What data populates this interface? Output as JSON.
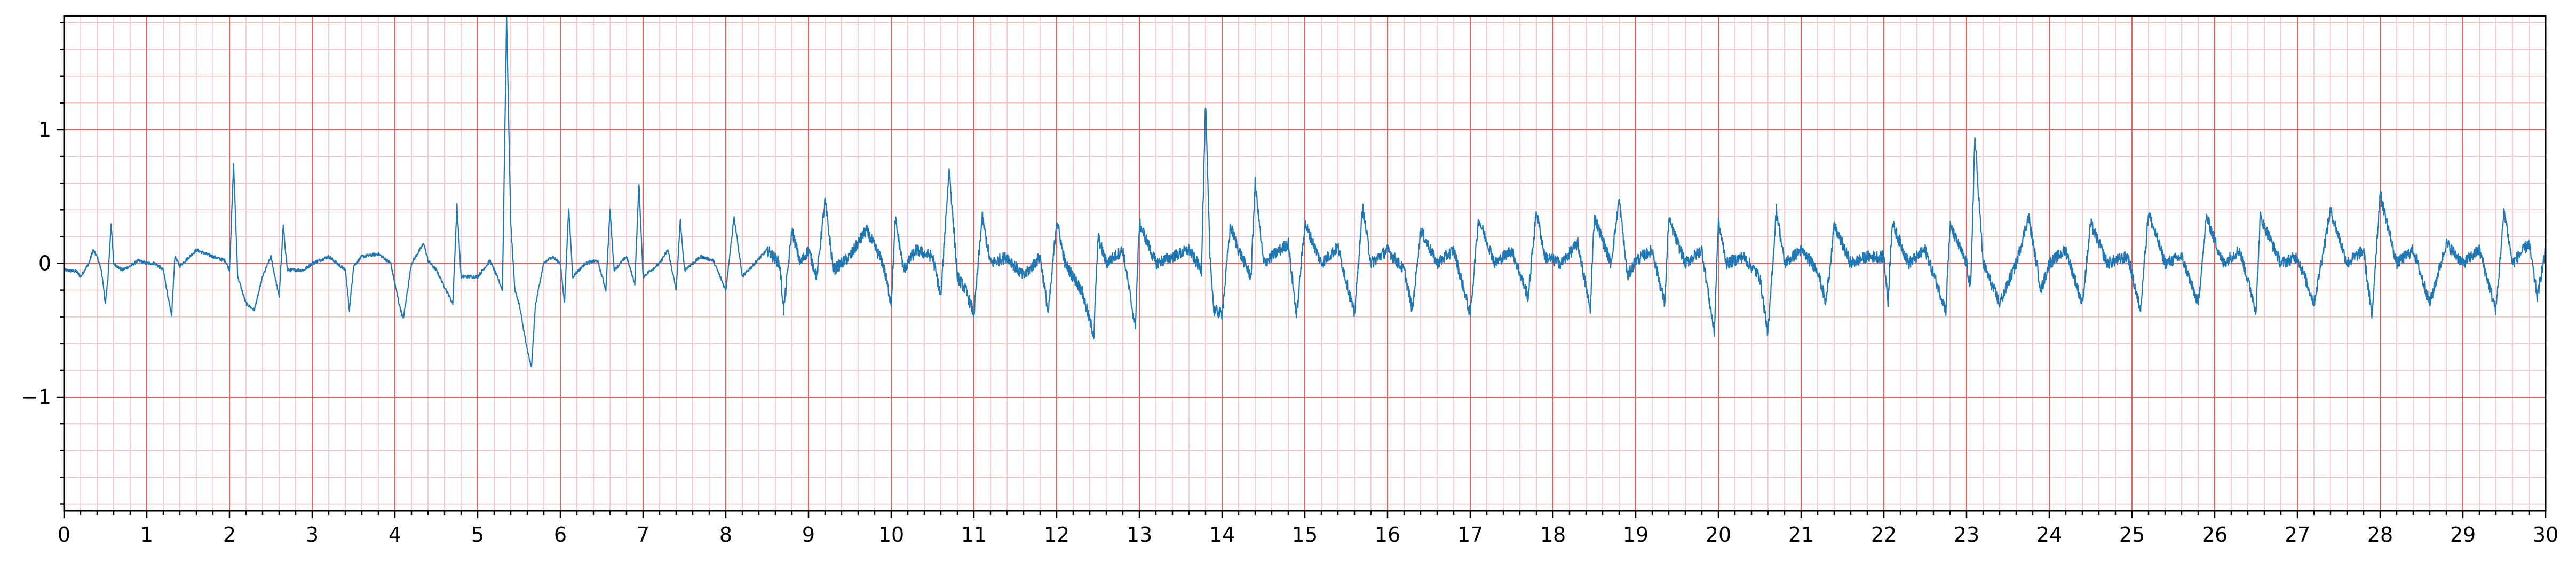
{
  "chart_data": {
    "type": "line",
    "title": "",
    "xlabel": "",
    "ylabel": "",
    "xlim": [
      0,
      30
    ],
    "ylim": [
      -1.85,
      1.85
    ],
    "x_ticks": [
      0,
      1,
      2,
      3,
      4,
      5,
      6,
      7,
      8,
      9,
      10,
      11,
      12,
      13,
      14,
      15,
      16,
      17,
      18,
      19,
      20,
      21,
      22,
      23,
      24,
      25,
      26,
      27,
      28,
      29,
      30
    ],
    "x_tick_labels": [
      "0",
      "1",
      "2",
      "3",
      "4",
      "5",
      "6",
      "7",
      "8",
      "9",
      "10",
      "11",
      "12",
      "13",
      "14",
      "15",
      "16",
      "17",
      "18",
      "19",
      "20",
      "21",
      "22",
      "23",
      "24",
      "25",
      "26",
      "27",
      "28",
      "29",
      "30"
    ],
    "y_ticks": [
      -1,
      0,
      1
    ],
    "y_tick_labels": [
      "−1",
      "0",
      "1"
    ],
    "grid": "ECG paper: major grid every 1 s / 1 unit, minor grid every 0.2",
    "colors": {
      "major_grid": "#e85c5c",
      "minor_grid": "#f8bcbc",
      "signal": "#1f77b4",
      "axes": "#000000"
    },
    "series": [
      {
        "signal_samples": [
          [
            0,
            -0.05
          ],
          [
            0.15,
            -0.06
          ],
          [
            0.2,
            -0.1
          ],
          [
            0.3,
            0.0
          ],
          [
            0.35,
            0.1
          ],
          [
            0.4,
            0.05
          ],
          [
            0.45,
            -0.05
          ],
          [
            0.5,
            -0.3
          ],
          [
            0.53,
            -0.12
          ],
          [
            0.57,
            0.3
          ],
          [
            0.6,
            0.0
          ],
          [
            0.7,
            -0.05
          ],
          [
            0.8,
            -0.02
          ],
          [
            0.9,
            0.02
          ],
          [
            1.0,
            0.0
          ],
          [
            1.1,
            0.0
          ],
          [
            1.2,
            -0.05
          ],
          [
            1.3,
            -0.4
          ],
          [
            1.34,
            0.05
          ],
          [
            1.4,
            -0.02
          ],
          [
            1.6,
            0.1
          ],
          [
            1.8,
            0.05
          ],
          [
            1.95,
            0.02
          ],
          [
            2.0,
            -0.05
          ],
          [
            2.05,
            0.74
          ],
          [
            2.1,
            -0.1
          ],
          [
            2.2,
            -0.3
          ],
          [
            2.3,
            -0.35
          ],
          [
            2.4,
            -0.1
          ],
          [
            2.5,
            0.05
          ],
          [
            2.6,
            -0.25
          ],
          [
            2.65,
            0.28
          ],
          [
            2.7,
            -0.05
          ],
          [
            2.9,
            -0.05
          ],
          [
            3.0,
            0.0
          ],
          [
            3.2,
            0.05
          ],
          [
            3.4,
            -0.05
          ],
          [
            3.45,
            -0.35
          ],
          [
            3.5,
            -0.02
          ],
          [
            3.6,
            0.05
          ],
          [
            3.8,
            0.07
          ],
          [
            3.95,
            0.0
          ],
          [
            4.05,
            -0.3
          ],
          [
            4.1,
            -0.42
          ],
          [
            4.2,
            0.0
          ],
          [
            4.35,
            0.15
          ],
          [
            4.4,
            0.02
          ],
          [
            4.5,
            -0.05
          ],
          [
            4.7,
            -0.3
          ],
          [
            4.75,
            0.44
          ],
          [
            4.8,
            -0.1
          ],
          [
            5.0,
            -0.1
          ],
          [
            5.15,
            0.02
          ],
          [
            5.25,
            -0.12
          ],
          [
            5.3,
            -0.2
          ],
          [
            5.35,
            1.85
          ],
          [
            5.4,
            0.3
          ],
          [
            5.45,
            -0.2
          ],
          [
            5.5,
            -0.3
          ],
          [
            5.6,
            -0.65
          ],
          [
            5.65,
            -0.78
          ],
          [
            5.7,
            -0.3
          ],
          [
            5.8,
            0.0
          ],
          [
            5.9,
            0.05
          ],
          [
            6.0,
            0.0
          ],
          [
            6.05,
            -0.3
          ],
          [
            6.1,
            0.42
          ],
          [
            6.15,
            -0.1
          ],
          [
            6.3,
            0.0
          ],
          [
            6.45,
            0.02
          ],
          [
            6.55,
            -0.2
          ],
          [
            6.6,
            0.4
          ],
          [
            6.65,
            -0.05
          ],
          [
            6.8,
            0.05
          ],
          [
            6.9,
            -0.15
          ],
          [
            6.95,
            0.6
          ],
          [
            7.0,
            -0.1
          ],
          [
            7.2,
            0.0
          ],
          [
            7.3,
            0.1
          ],
          [
            7.4,
            -0.2
          ],
          [
            7.45,
            0.32
          ],
          [
            7.5,
            -0.05
          ],
          [
            7.7,
            0.05
          ],
          [
            7.85,
            0.02
          ],
          [
            8.0,
            -0.2
          ],
          [
            8.1,
            0.35
          ],
          [
            8.2,
            -0.1
          ],
          [
            8.35,
            0.0
          ],
          [
            8.5,
            0.1
          ],
          [
            8.65,
            0.0
          ],
          [
            8.7,
            -0.35
          ],
          [
            8.8,
            0.25
          ],
          [
            8.9,
            0.0
          ],
          [
            9.0,
            0.1
          ],
          [
            9.1,
            -0.1
          ],
          [
            9.2,
            0.47
          ],
          [
            9.3,
            -0.05
          ],
          [
            9.5,
            0.05
          ],
          [
            9.7,
            0.25
          ],
          [
            9.9,
            0.0
          ],
          [
            10.0,
            -0.3
          ],
          [
            10.05,
            0.33
          ],
          [
            10.15,
            -0.05
          ],
          [
            10.3,
            0.1
          ],
          [
            10.5,
            0.05
          ],
          [
            10.6,
            -0.25
          ],
          [
            10.7,
            0.72
          ],
          [
            10.8,
            -0.1
          ],
          [
            10.9,
            -0.2
          ],
          [
            11.0,
            -0.38
          ],
          [
            11.1,
            0.35
          ],
          [
            11.2,
            0.0
          ],
          [
            11.4,
            0.05
          ],
          [
            11.6,
            -0.1
          ],
          [
            11.8,
            0.05
          ],
          [
            11.9,
            -0.38
          ],
          [
            12.0,
            0.33
          ],
          [
            12.1,
            0.0
          ],
          [
            12.3,
            -0.2
          ],
          [
            12.45,
            -0.54
          ],
          [
            12.5,
            0.2
          ],
          [
            12.6,
            0.0
          ],
          [
            12.8,
            0.1
          ],
          [
            12.95,
            -0.48
          ],
          [
            13.0,
            0.3
          ],
          [
            13.2,
            0.0
          ],
          [
            13.4,
            0.05
          ],
          [
            13.6,
            0.1
          ],
          [
            13.75,
            -0.05
          ],
          [
            13.8,
            1.2
          ],
          [
            13.85,
            0.1
          ],
          [
            13.9,
            -0.35
          ],
          [
            14.0,
            -0.38
          ],
          [
            14.1,
            0.28
          ],
          [
            14.2,
            0.1
          ],
          [
            14.35,
            -0.1
          ],
          [
            14.4,
            0.6
          ],
          [
            14.5,
            0.0
          ],
          [
            14.8,
            0.15
          ],
          [
            14.9,
            -0.4
          ],
          [
            15.0,
            0.3
          ],
          [
            15.2,
            0.0
          ],
          [
            15.4,
            0.12
          ],
          [
            15.6,
            -0.38
          ],
          [
            15.7,
            0.42
          ],
          [
            15.8,
            0.0
          ],
          [
            16.0,
            0.1
          ],
          [
            16.2,
            -0.05
          ],
          [
            16.3,
            -0.35
          ],
          [
            16.4,
            0.25
          ],
          [
            16.6,
            0.0
          ],
          [
            16.8,
            0.1
          ],
          [
            17.0,
            -0.38
          ],
          [
            17.1,
            0.33
          ],
          [
            17.3,
            0.0
          ],
          [
            17.5,
            0.1
          ],
          [
            17.7,
            -0.25
          ],
          [
            17.8,
            0.4
          ],
          [
            17.9,
            0.05
          ],
          [
            18.1,
            0.0
          ],
          [
            18.3,
            0.15
          ],
          [
            18.45,
            -0.35
          ],
          [
            18.5,
            0.35
          ],
          [
            18.7,
            0.0
          ],
          [
            18.8,
            0.48
          ],
          [
            18.9,
            -0.1
          ],
          [
            19.0,
            0.02
          ],
          [
            19.2,
            0.1
          ],
          [
            19.35,
            -0.3
          ],
          [
            19.4,
            0.33
          ],
          [
            19.6,
            0.0
          ],
          [
            19.8,
            0.1
          ],
          [
            19.95,
            -0.52
          ],
          [
            20.0,
            0.3
          ],
          [
            20.1,
            0.0
          ],
          [
            20.3,
            0.05
          ],
          [
            20.5,
            -0.1
          ],
          [
            20.6,
            -0.53
          ],
          [
            20.7,
            0.4
          ],
          [
            20.8,
            0.0
          ],
          [
            21.0,
            0.1
          ],
          [
            21.2,
            -0.05
          ],
          [
            21.3,
            -0.3
          ],
          [
            21.4,
            0.28
          ],
          [
            21.6,
            0.0
          ],
          [
            21.8,
            0.05
          ],
          [
            22.0,
            0.05
          ],
          [
            22.05,
            -0.3
          ],
          [
            22.1,
            0.3
          ],
          [
            22.3,
            0.0
          ],
          [
            22.5,
            0.1
          ],
          [
            22.75,
            -0.35
          ],
          [
            22.8,
            0.28
          ],
          [
            23.0,
            0.0
          ],
          [
            23.05,
            -0.2
          ],
          [
            23.1,
            0.95
          ],
          [
            23.2,
            0.0
          ],
          [
            23.4,
            -0.3
          ],
          [
            23.6,
            0.0
          ],
          [
            23.75,
            0.35
          ],
          [
            23.9,
            -0.2
          ],
          [
            24.0,
            0.0
          ],
          [
            24.2,
            0.1
          ],
          [
            24.4,
            -0.3
          ],
          [
            24.5,
            0.3
          ],
          [
            24.7,
            0.0
          ],
          [
            24.95,
            0.05
          ],
          [
            25.1,
            -0.35
          ],
          [
            25.2,
            0.38
          ],
          [
            25.4,
            0.0
          ],
          [
            25.6,
            0.05
          ],
          [
            25.8,
            -0.3
          ],
          [
            25.9,
            0.35
          ],
          [
            26.1,
            0.0
          ],
          [
            26.3,
            0.1
          ],
          [
            26.5,
            -0.35
          ],
          [
            26.55,
            0.35
          ],
          [
            26.8,
            0.0
          ],
          [
            27.0,
            0.05
          ],
          [
            27.2,
            -0.3
          ],
          [
            27.4,
            0.4
          ],
          [
            27.6,
            0.0
          ],
          [
            27.8,
            0.1
          ],
          [
            27.9,
            -0.4
          ],
          [
            28.0,
            0.52
          ],
          [
            28.2,
            0.0
          ],
          [
            28.4,
            0.1
          ],
          [
            28.6,
            -0.3
          ],
          [
            28.8,
            0.15
          ],
          [
            29.0,
            0.0
          ],
          [
            29.2,
            0.1
          ],
          [
            29.4,
            -0.35
          ],
          [
            29.5,
            0.4
          ],
          [
            29.6,
            0.0
          ],
          [
            29.8,
            0.15
          ],
          [
            29.9,
            -0.25
          ],
          [
            30.0,
            0.1
          ]
        ]
      }
    ]
  }
}
